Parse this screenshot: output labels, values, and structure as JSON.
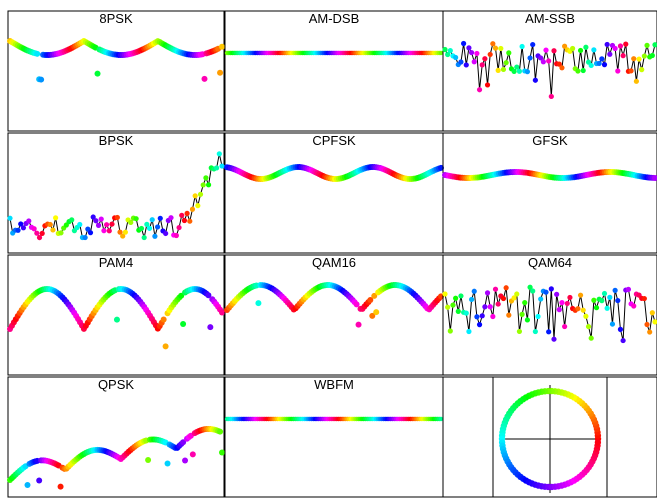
{
  "chart_data": {
    "type": "scatter",
    "description_free": true,
    "panels": [
      {
        "title": "8PSK",
        "kind": "wave",
        "seed": 1,
        "style": "arc"
      },
      {
        "title": "AM-DSB",
        "kind": "flat",
        "seed": 2
      },
      {
        "title": "AM-SSB",
        "kind": "noise",
        "seed": 3
      },
      {
        "title": "BPSK",
        "kind": "noise-rise",
        "seed": 4
      },
      {
        "title": "CPFSK",
        "kind": "smooth",
        "seed": 5
      },
      {
        "title": "GFSK",
        "kind": "smooth-flat",
        "seed": 6
      },
      {
        "title": "PAM4",
        "kind": "arcs-deep",
        "seed": 7
      },
      {
        "title": "QAM16",
        "kind": "arcs",
        "seed": 8
      },
      {
        "title": "QAM64",
        "kind": "noise",
        "seed": 9
      },
      {
        "title": "QPSK",
        "kind": "arcs-rise",
        "seed": 10
      },
      {
        "title": "WBFM",
        "kind": "flat",
        "seed": 11
      },
      {
        "title": "",
        "kind": "legend-circle",
        "seed": 0
      }
    ],
    "legend": {
      "type": "color-wheel",
      "placement": "bottom-right"
    }
  }
}
